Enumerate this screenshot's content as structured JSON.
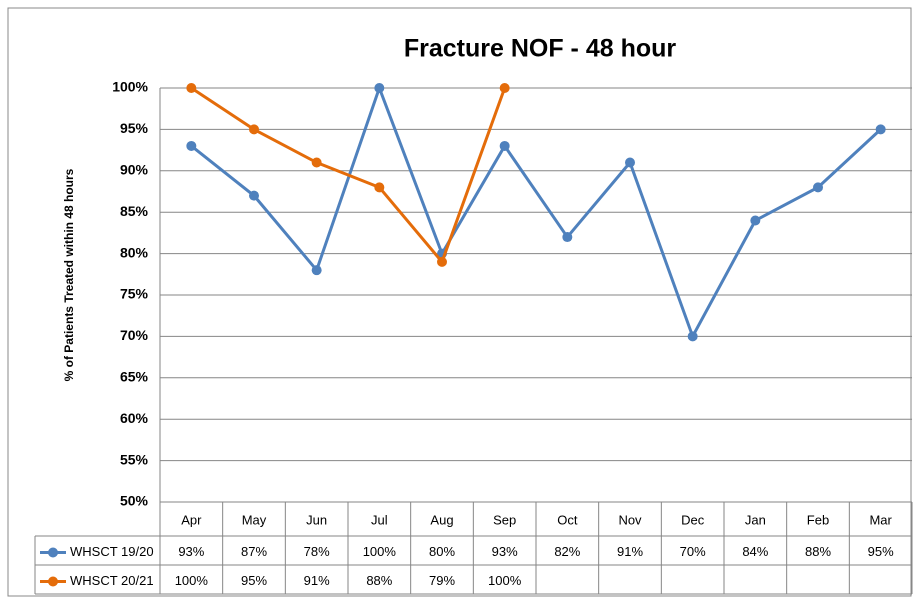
{
  "chart_data": {
    "type": "line",
    "title": "Fracture NOF - 48 hour",
    "y_label": "% of Patients Treated within 48 hours",
    "categories": [
      "Apr",
      "May",
      "Jun",
      "Jul",
      "Aug",
      "Sep",
      "Oct",
      "Nov",
      "Dec",
      "Jan",
      "Feb",
      "Mar"
    ],
    "series": [
      {
        "name": "WHSCT 19/20",
        "color": "#4f81bd",
        "values": [
          93,
          87,
          78,
          100,
          80,
          93,
          82,
          91,
          70,
          84,
          88,
          95
        ],
        "value_labels": [
          "93%",
          "87%",
          "78%",
          "100%",
          "80%",
          "93%",
          "82%",
          "91%",
          "70%",
          "84%",
          "88%",
          "95%"
        ]
      },
      {
        "name": "WHSCT 20/21",
        "color": "#e46c0a",
        "values": [
          100,
          95,
          91,
          88,
          79,
          100,
          null,
          null,
          null,
          null,
          null,
          null
        ],
        "value_labels": [
          "100%",
          "95%",
          "91%",
          "88%",
          "79%",
          "100%",
          null,
          null,
          null,
          null,
          null,
          null
        ]
      }
    ],
    "ylim": [
      50,
      100
    ],
    "yticks": [
      {
        "value": 50,
        "label": "50%"
      },
      {
        "value": 55,
        "label": "55%"
      },
      {
        "value": 60,
        "label": "60%"
      },
      {
        "value": 65,
        "label": "65%"
      },
      {
        "value": 70,
        "label": "70%"
      },
      {
        "value": 75,
        "label": "75%"
      },
      {
        "value": 80,
        "label": "80%"
      },
      {
        "value": 85,
        "label": "85%"
      },
      {
        "value": 90,
        "label": "90%"
      },
      {
        "value": 95,
        "label": "95%"
      },
      {
        "value": 100,
        "label": "100%"
      }
    ],
    "grid": true
  }
}
